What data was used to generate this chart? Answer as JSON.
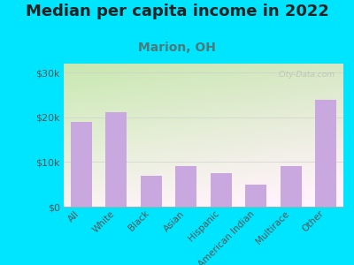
{
  "title": "Median per capita income in 2022",
  "subtitle": "Marion, OH",
  "categories": [
    "All",
    "White",
    "Black",
    "Asian",
    "Hispanic",
    "American Indian",
    "Multirace",
    "Other"
  ],
  "values": [
    19000,
    21200,
    7000,
    9000,
    7500,
    5000,
    9000,
    24000
  ],
  "bar_color": "#c9a8e0",
  "title_fontsize": 13,
  "subtitle_fontsize": 10,
  "subtitle_color": "#4a7a7a",
  "title_color": "#222222",
  "background_color": "#00e5ff",
  "ylim": [
    0,
    32000
  ],
  "yticks": [
    0,
    10000,
    20000,
    30000
  ],
  "ytick_labels": [
    "$0",
    "$10k",
    "$20k",
    "$30k"
  ],
  "watermark": "City-Data.com",
  "tick_label_color": "#555555",
  "tick_fontsize": 8,
  "xtick_fontsize": 7.5
}
